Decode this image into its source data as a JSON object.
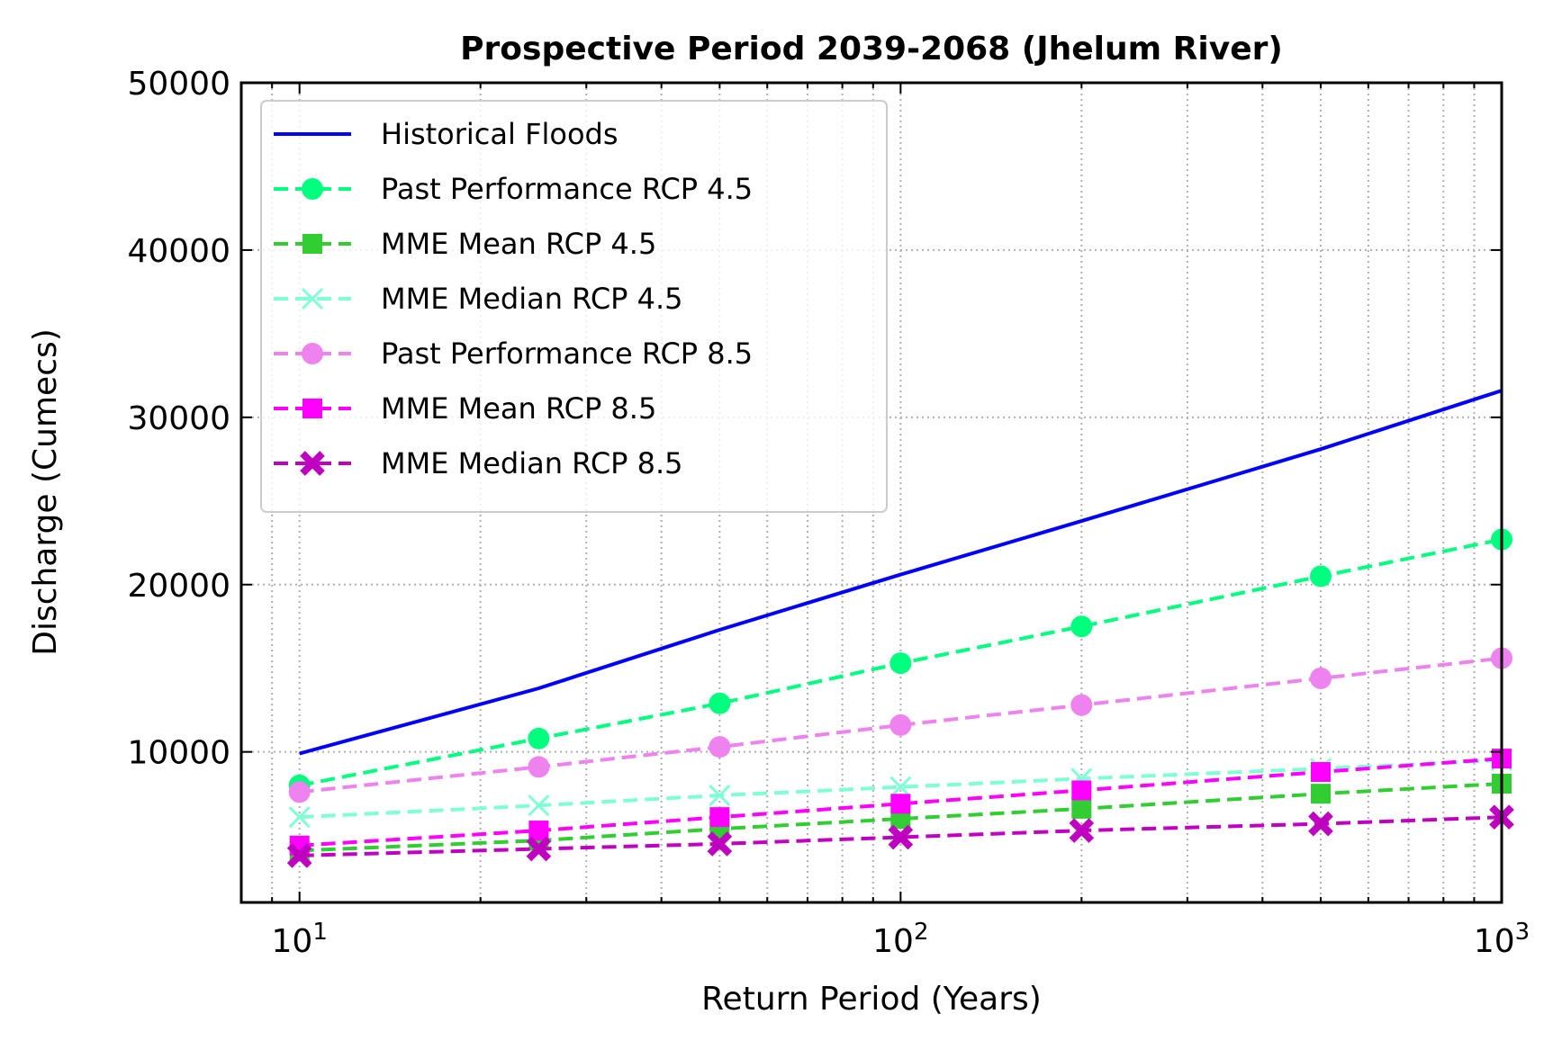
{
  "chart_data": {
    "type": "line",
    "title": "Prospective Period 2039-2068 (Jhelum River)",
    "xlabel": "Return Period (Years)",
    "ylabel": "Discharge (Cumecs)",
    "xscale": "log",
    "xlim": [
      8,
      1000
    ],
    "ylim": [
      1000,
      50000
    ],
    "grid": true,
    "legend_position": "upper-left",
    "x_ticks": [
      {
        "value": 10,
        "base": "10",
        "exp": "1"
      },
      {
        "value": 100,
        "base": "10",
        "exp": "2"
      },
      {
        "value": 1000,
        "base": "10",
        "exp": "3"
      }
    ],
    "y_ticks": [
      10000,
      20000,
      30000,
      40000,
      50000
    ],
    "y_tick_labels": [
      "10000",
      "20000",
      "30000",
      "40000",
      "50000"
    ],
    "series": [
      {
        "name": "Historical Floods",
        "color": "#0000ff",
        "dash": "solid",
        "marker": "none",
        "x": [
          10,
          25,
          50,
          100,
          200,
          500,
          1000
        ],
        "values": [
          9900,
          13800,
          17300,
          20600,
          23800,
          28100,
          31600
        ]
      },
      {
        "name": "Past Performance RCP 4.5",
        "color": "#00ff7f",
        "dash": "dashed",
        "marker": "circle",
        "x": [
          10,
          25,
          50,
          100,
          200,
          500,
          1000
        ],
        "values": [
          8000,
          10800,
          12900,
          15300,
          17500,
          20500,
          22700
        ]
      },
      {
        "name": "MME Mean RCP 4.5",
        "color": "#32cd32",
        "dash": "dashed",
        "marker": "square",
        "x": [
          10,
          25,
          50,
          100,
          200,
          500,
          1000
        ],
        "values": [
          4100,
          4700,
          5400,
          6000,
          6600,
          7500,
          8100
        ]
      },
      {
        "name": "MME Median RCP 4.5",
        "color": "#7fffd4",
        "dash": "dashed",
        "marker": "x",
        "x": [
          10,
          25,
          50,
          100,
          200,
          500,
          1000
        ],
        "values": [
          6100,
          6800,
          7400,
          7900,
          8400,
          9000,
          9500
        ]
      },
      {
        "name": "Past Performance RCP 8.5",
        "color": "#ee82ee",
        "dash": "dashed",
        "marker": "circle",
        "x": [
          10,
          25,
          50,
          100,
          200,
          500,
          1000
        ],
        "values": [
          7600,
          9100,
          10300,
          11600,
          12800,
          14400,
          15600
        ]
      },
      {
        "name": "MME Mean RCP 8.5",
        "color": "#ff00ff",
        "dash": "dashed",
        "marker": "square",
        "x": [
          10,
          25,
          50,
          100,
          200,
          500,
          1000
        ],
        "values": [
          4400,
          5300,
          6100,
          6900,
          7700,
          8800,
          9600
        ]
      },
      {
        "name": "MME Median RCP 8.5",
        "color": "#c000c0",
        "dash": "dashed",
        "marker": "xfilled",
        "x": [
          10,
          25,
          50,
          100,
          200,
          500,
          1000
        ],
        "values": [
          3800,
          4200,
          4500,
          4900,
          5300,
          5700,
          6100
        ]
      }
    ]
  }
}
